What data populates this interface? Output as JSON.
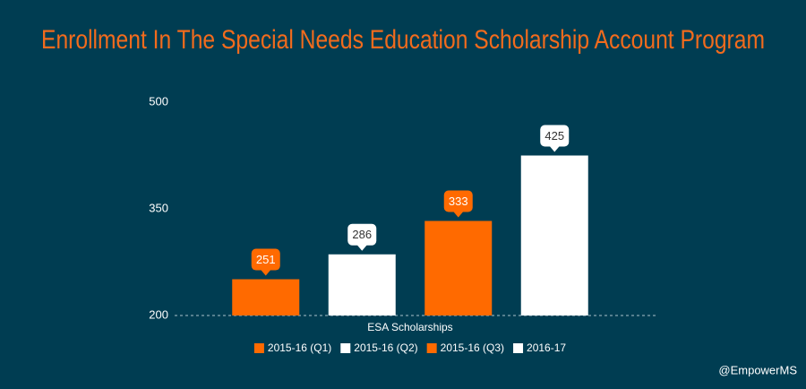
{
  "chart_data": {
    "type": "bar",
    "title": "Enrollment In The Special Needs Education Scholarship Account Program",
    "categories": [
      "ESA Scholarships"
    ],
    "series": [
      {
        "name": "2015-16 (Q1)",
        "color": "#ff6a00",
        "values": [
          251
        ]
      },
      {
        "name": "2015-16 (Q2)",
        "color": "#ffffff",
        "values": [
          286
        ]
      },
      {
        "name": "2015-16 (Q3)",
        "color": "#ff6a00",
        "values": [
          333
        ]
      },
      {
        "name": "2016-17",
        "color": "#ffffff",
        "values": [
          425
        ]
      }
    ],
    "ylim": [
      200,
      500
    ],
    "yticks": [
      200,
      350,
      500
    ],
    "grid": false,
    "legend": "bottom",
    "annotation": "@EmpowerMS"
  }
}
